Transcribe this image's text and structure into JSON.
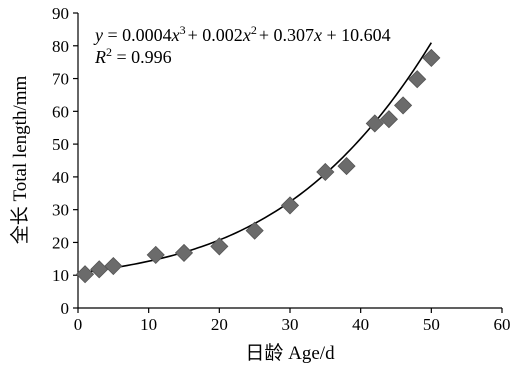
{
  "chart_data": {
    "type": "scatter",
    "xlabel": "日龄 Age/d",
    "ylabel": "全长 Total length/mm",
    "xlim": [
      0,
      60
    ],
    "ylim": [
      0,
      90
    ],
    "x_ticks": [
      "0",
      "10",
      "20",
      "30",
      "40",
      "50",
      "60"
    ],
    "y_ticks": [
      "0",
      "10",
      "20",
      "30",
      "40",
      "50",
      "60",
      "70",
      "80",
      "90"
    ],
    "grid": false,
    "marker": "diamond",
    "marker_color": "#6b6b6b",
    "line_color": "#000000",
    "points": [
      {
        "x": 1,
        "y": 10.3
      },
      {
        "x": 3,
        "y": 11.8
      },
      {
        "x": 5,
        "y": 12.8
      },
      {
        "x": 11,
        "y": 16.2
      },
      {
        "x": 15,
        "y": 16.8
      },
      {
        "x": 20,
        "y": 18.8
      },
      {
        "x": 25,
        "y": 23.6
      },
      {
        "x": 30,
        "y": 31.3
      },
      {
        "x": 35,
        "y": 41.5
      },
      {
        "x": 38,
        "y": 43.3
      },
      {
        "x": 42,
        "y": 56.3
      },
      {
        "x": 44,
        "y": 57.6
      },
      {
        "x": 46,
        "y": 61.8
      },
      {
        "x": 48,
        "y": 69.8
      },
      {
        "x": 50,
        "y": 76.3
      }
    ],
    "trendline": {
      "type": "polynomial",
      "coefficients": [
        0.0004,
        0.002,
        0.307,
        10.604
      ],
      "x_range": [
        0,
        50
      ]
    },
    "annotation": {
      "eq_y": "y",
      "eq_rest": " = 0.0004",
      "eq_x1": "x",
      "eq_p3": "3",
      "eq_plus1": "+ 0.002",
      "eq_x2": "x",
      "eq_p2": "2",
      "eq_plus2": "+ 0.307",
      "eq_x3": "x",
      "eq_tail": " + 10.604",
      "r2_label": "R",
      "r2_pow": "2",
      "r2_value": " = 0.996"
    }
  }
}
